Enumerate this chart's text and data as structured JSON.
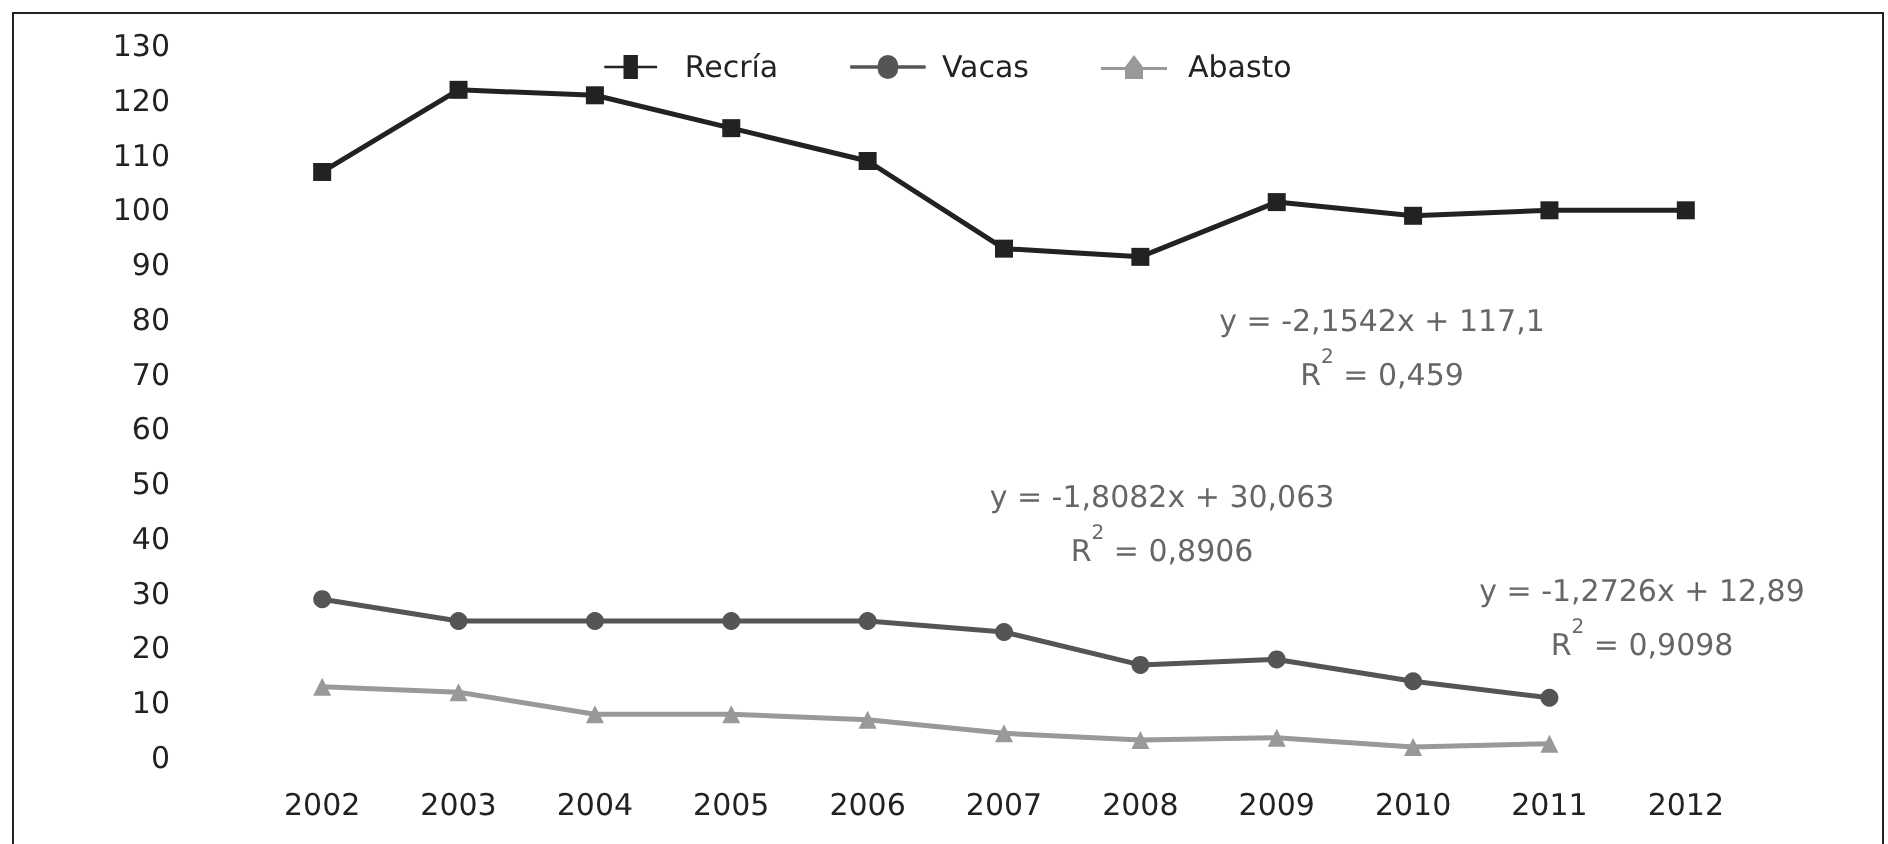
{
  "chart_data": {
    "type": "line",
    "categories": [
      "2002",
      "2003",
      "2004",
      "2005",
      "2006",
      "2007",
      "2008",
      "2009",
      "2010",
      "2011",
      "2012"
    ],
    "series": [
      {
        "name": "Recría",
        "color": "#222222",
        "marker": "square",
        "values": [
          107,
          122,
          121,
          115,
          109,
          93,
          91.5,
          101.5,
          99,
          100,
          100
        ]
      },
      {
        "name": "Vacas",
        "color": "#555555",
        "marker": "circle",
        "values": [
          29,
          25,
          25,
          25,
          25,
          23,
          17,
          18,
          14,
          11,
          null
        ]
      },
      {
        "name": "Abasto",
        "color": "#999999",
        "marker": "triangle",
        "values": [
          13,
          12,
          8,
          8,
          7,
          4.5,
          3.3,
          3.7,
          2,
          2.6,
          null
        ]
      }
    ],
    "ylim": [
      0,
      130
    ],
    "yticks": [
      0,
      10,
      20,
      30,
      40,
      50,
      60,
      70,
      80,
      90,
      100,
      110,
      120,
      130
    ],
    "grid": false,
    "legend": "top",
    "line_style": "solid",
    "annotations": [
      "y = -2,1542x + 117,1\nR$^{2}$ = 0,459",
      "y = -1,8082x + 30,063\nR$^{2}$ = 0,8906",
      "y = -1,2726x + 12,89\nR$^{2}$ = 0,9098"
    ]
  }
}
